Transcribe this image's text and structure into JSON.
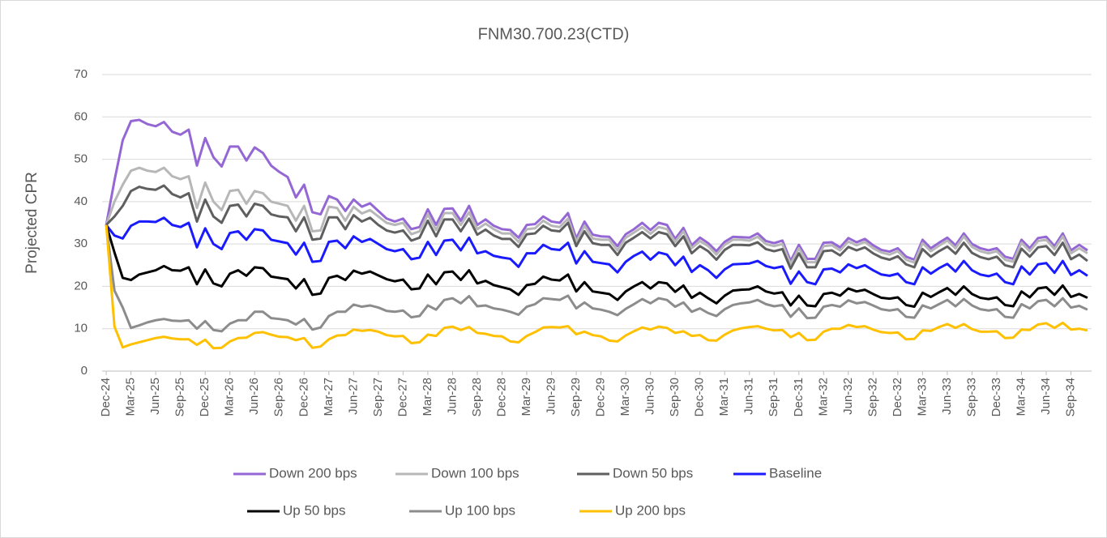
{
  "chart_data": {
    "type": "line",
    "title": "FNM30.700.23(CTD)",
    "y_label": "Projected CPR",
    "categories": [
      "Dec-24",
      null,
      null,
      "Mar-25",
      null,
      null,
      "Jun-25",
      null,
      null,
      "Sep-25",
      null,
      null,
      "Dec-25",
      null,
      null,
      "Mar-26",
      null,
      null,
      "Jun-26",
      null,
      null,
      "Sep-26",
      null,
      null,
      "Dec-26",
      null,
      null,
      "Mar-27",
      null,
      null,
      "Jun-27",
      null,
      null,
      "Sep-27",
      null,
      null,
      "Dec-27",
      null,
      null,
      "Mar-28",
      null,
      null,
      "Jun-28",
      null,
      null,
      "Sep-28",
      null,
      null,
      "Dec-28",
      null,
      null,
      "Mar-29",
      null,
      null,
      "Jun-29",
      null,
      null,
      "Sep-29",
      null,
      null,
      "Dec-29",
      null,
      null,
      "Mar-30",
      null,
      null,
      "Jun-30",
      null,
      null,
      "Sep-30",
      null,
      null,
      "Dec-30",
      null,
      null,
      "Mar-31",
      null,
      null,
      "Jun-31",
      null,
      null,
      "Sep-31",
      null,
      null,
      "Dec-31",
      null,
      null,
      "Mar-32",
      null,
      null,
      "Jun-32",
      null,
      null,
      "Sep-32",
      null,
      null,
      "Dec-32",
      null,
      null,
      "Mar-33",
      null,
      null,
      "Jun-33",
      null,
      null,
      "Sep-33",
      null,
      null,
      "Dec-33",
      null,
      null,
      "Mar-34",
      null,
      null,
      "Jun-34",
      null,
      null,
      "Sep-34",
      null,
      null
    ],
    "ylim": [
      0,
      70
    ],
    "yticks": [
      0,
      10,
      20,
      30,
      40,
      50,
      60,
      70
    ],
    "grid": true,
    "series": [
      {
        "name": "Down 200 bps",
        "color": "#9467d4",
        "values": [
          34.5,
          45,
          54.5,
          59,
          59.3,
          58.3,
          57.8,
          58.8,
          56.5,
          55.8,
          57,
          48.5,
          55,
          50.5,
          48.3,
          53,
          53,
          49.7,
          52.8,
          51.5,
          48.5,
          47,
          45.8,
          41,
          44,
          37.5,
          37,
          41.3,
          40.5,
          37.8,
          40.5,
          38.8,
          39.6,
          37.8,
          36,
          35.3,
          36,
          33.5,
          34,
          38.2,
          34.5,
          38.3,
          38.4,
          35.5,
          39,
          34.5,
          35.8,
          34.3,
          33.5,
          33.3,
          31.5,
          34.5,
          34.7,
          36.5,
          35.3,
          35,
          37.3,
          31.3,
          35.3,
          32.2,
          31.8,
          31.7,
          29.5,
          32.3,
          33.5,
          35,
          33.3,
          35,
          34.5,
          31.2,
          33.8,
          29.7,
          31.5,
          30.2,
          28.3,
          30.5,
          31.7,
          31.6,
          31.5,
          32.5,
          30.7,
          30.2,
          30.8,
          26,
          29.8,
          26.5,
          26.5,
          30.3,
          30.4,
          29.2,
          31.4,
          30.4,
          31.2,
          29.7,
          28.6,
          28.2,
          29,
          27,
          26.3,
          31,
          29,
          30.3,
          31.5,
          29.7,
          32.5,
          30,
          29,
          28.5,
          29,
          27,
          26.5,
          31,
          29,
          31.4,
          31.7,
          29.5,
          32.5,
          28.5,
          29.8,
          28.5
        ]
      },
      {
        "name": "Down 100 bps",
        "color": "#b7b7b7",
        "values": [
          34.5,
          40,
          44,
          47.3,
          48,
          47.3,
          47,
          48,
          46,
          45.3,
          46,
          38.5,
          44.5,
          40,
          38,
          42.5,
          42.8,
          39.5,
          42.5,
          42,
          40,
          39.5,
          39,
          35.5,
          39,
          33,
          33.2,
          38.8,
          38.5,
          35.5,
          38.8,
          37.2,
          38,
          36.5,
          35,
          34.5,
          35,
          32.3,
          33,
          37,
          33.3,
          37.3,
          37.3,
          34.5,
          37.5,
          33.5,
          34.8,
          33.5,
          32.5,
          32.5,
          30.5,
          33.5,
          33.7,
          35.5,
          34.3,
          34,
          36,
          30.5,
          34.3,
          31.3,
          31,
          31,
          28.5,
          31.5,
          32.7,
          34,
          32.4,
          34,
          33.5,
          30.5,
          33,
          29,
          30.7,
          29.5,
          27.5,
          29.8,
          31,
          31,
          30.8,
          31.7,
          30,
          29.5,
          30,
          25.3,
          29,
          25.7,
          25.7,
          29.5,
          29.7,
          28.5,
          30.6,
          29.7,
          30.5,
          29,
          28,
          27.5,
          28.3,
          26.3,
          25.6,
          30.2,
          28.3,
          29.6,
          30.8,
          29,
          31.8,
          29.3,
          28.3,
          27.8,
          28.3,
          26.3,
          25.8,
          30.3,
          28.3,
          30.7,
          31,
          28.8,
          31.8,
          27.8,
          29,
          27.8
        ]
      },
      {
        "name": "Down 50 bps",
        "color": "#5f5f5f",
        "values": [
          34.5,
          36.5,
          39,
          42.5,
          43.5,
          43,
          42.8,
          43.8,
          41.8,
          41,
          42,
          35.3,
          40.5,
          36.5,
          35,
          39,
          39.3,
          36.5,
          39.5,
          39,
          37,
          36.5,
          36.3,
          33,
          36.3,
          31,
          31.3,
          36.3,
          36.3,
          33.5,
          36.8,
          35.3,
          36.2,
          34.5,
          33.2,
          32.7,
          33.2,
          30.8,
          31.5,
          35.5,
          31.8,
          35.8,
          35.8,
          33,
          36,
          32.2,
          33.4,
          32,
          31.2,
          31.2,
          29.3,
          32.3,
          32.5,
          34.3,
          33.2,
          33,
          35,
          29.5,
          33,
          30.2,
          29.8,
          29.8,
          27.4,
          30.3,
          31.5,
          32.8,
          31.3,
          32.8,
          32.3,
          29.5,
          31.8,
          27.8,
          29.5,
          28.3,
          26.3,
          28.6,
          29.8,
          29.8,
          29.7,
          30.4,
          28.8,
          28.3,
          28.8,
          24.2,
          27.8,
          24.5,
          24.5,
          28.3,
          28.5,
          27.3,
          29.3,
          28.5,
          29.2,
          27.8,
          26.8,
          26.3,
          27.1,
          25.2,
          24.5,
          28.8,
          27,
          28.3,
          29.4,
          27.7,
          30.3,
          27.9,
          26.9,
          26.4,
          27,
          25,
          24.5,
          28.9,
          27,
          29.2,
          29.5,
          27.4,
          30.3,
          26.4,
          27.5,
          26
        ]
      },
      {
        "name": "Baseline",
        "color": "#1a1aff",
        "values": [
          34.5,
          32,
          31.3,
          34.3,
          35.3,
          35.3,
          35.2,
          36.2,
          34.5,
          34,
          35,
          29.2,
          33.7,
          30,
          28.8,
          32.6,
          33,
          31,
          33.5,
          33.2,
          31,
          30.6,
          30.2,
          27.5,
          30.3,
          25.8,
          26,
          30.5,
          30.8,
          29,
          31.8,
          30.5,
          31.2,
          30,
          28.8,
          28.3,
          28.8,
          26.4,
          26.8,
          30.5,
          27.4,
          30.8,
          31,
          28.5,
          31.5,
          27.8,
          28.3,
          27.2,
          26.8,
          26.5,
          24.6,
          27.8,
          27.8,
          29.8,
          28.8,
          28.6,
          30.3,
          25.4,
          28.3,
          25.8,
          25.5,
          25.2,
          23.3,
          25.8,
          27.2,
          28.2,
          26.3,
          28,
          27.5,
          25,
          27,
          23.4,
          25,
          23.8,
          22,
          24,
          25.2,
          25.3,
          25.4,
          26,
          24.8,
          24.3,
          24.7,
          20.6,
          23.5,
          21,
          20.5,
          24,
          24.2,
          23.3,
          25.2,
          24.3,
          25,
          23.8,
          22.8,
          22.5,
          23,
          21,
          20.5,
          24.5,
          23,
          24.3,
          25.3,
          23.5,
          26,
          23.8,
          22.8,
          22.4,
          23,
          21,
          20.5,
          24.7,
          22.8,
          25.2,
          25.5,
          23.2,
          26,
          22.7,
          23.8,
          22.5
        ]
      },
      {
        "name": "Up 50 bps",
        "color": "#000000",
        "values": [
          34.5,
          28,
          22,
          21.5,
          22.8,
          23.3,
          23.8,
          24.8,
          23.8,
          23.7,
          24.5,
          20.5,
          24,
          20.7,
          20,
          23,
          23.8,
          22.5,
          24.5,
          24.3,
          22.3,
          22,
          21.7,
          19.5,
          21.7,
          18,
          18.3,
          22,
          22.5,
          21.5,
          23.7,
          23,
          23.5,
          22.6,
          21.7,
          21.2,
          21.6,
          19.3,
          19.5,
          22.8,
          20.5,
          23.3,
          23.5,
          21.5,
          23.8,
          20.7,
          21.3,
          20.3,
          19.8,
          19.3,
          18,
          20.3,
          20.6,
          22.3,
          21.6,
          21.4,
          22.8,
          18.8,
          21,
          18.8,
          18.5,
          18.2,
          16.8,
          18.8,
          20,
          21,
          19.5,
          21,
          20.7,
          18.7,
          20.2,
          17.3,
          18.5,
          17.2,
          16,
          17.8,
          19,
          19.2,
          19.3,
          20,
          18.8,
          18.3,
          18.6,
          15.5,
          17.8,
          15.5,
          15.3,
          18.2,
          18.5,
          17.8,
          19.5,
          18.8,
          19.2,
          18.2,
          17.3,
          17.1,
          17.4,
          15.6,
          15.2,
          18.5,
          17.5,
          18.6,
          19.6,
          18,
          20,
          18.2,
          17.3,
          17,
          17.4,
          15.6,
          15.3,
          18.8,
          17.4,
          19.5,
          19.8,
          18,
          20.2,
          17.5,
          18.2,
          17.3
        ]
      },
      {
        "name": "Up 100 bps",
        "color": "#8c8c8c",
        "values": [
          34.5,
          19,
          15,
          10.2,
          10.8,
          11.5,
          12,
          12.3,
          11.9,
          11.8,
          12,
          10,
          11.8,
          9.7,
          9.4,
          11.2,
          12,
          12,
          14,
          14,
          12.5,
          12.3,
          12,
          11,
          12.3,
          9.8,
          10.3,
          13,
          14,
          14,
          15.7,
          15.2,
          15.5,
          15,
          14.2,
          14,
          14.3,
          12.7,
          13,
          15.5,
          14.5,
          16.8,
          17.2,
          16,
          17.7,
          15.3,
          15.5,
          14.8,
          14.5,
          14,
          13.3,
          15.2,
          15.8,
          17.2,
          17,
          16.8,
          17.8,
          14.8,
          16.2,
          14.8,
          14.5,
          14,
          13.2,
          14.7,
          15.8,
          17,
          16,
          17.2,
          16.8,
          15.2,
          16.2,
          14,
          14.8,
          13.7,
          13,
          14.6,
          15.6,
          16,
          16.2,
          16.8,
          15.8,
          15.3,
          15.6,
          12.8,
          14.8,
          12.5,
          12.6,
          15.2,
          15.6,
          15.2,
          16.7,
          16,
          16.3,
          15.5,
          14.6,
          14.3,
          14.6,
          12.8,
          12.6,
          15.5,
          14.8,
          15.8,
          16.8,
          15.3,
          17,
          15.5,
          14.6,
          14.3,
          14.6,
          12.8,
          12.6,
          15.8,
          14.8,
          16.5,
          16.8,
          15.3,
          17.2,
          15,
          15.4,
          14.5
        ]
      },
      {
        "name": "Up 200 bps",
        "color": "#ffc000",
        "values": [
          34.5,
          10.5,
          5.6,
          6.3,
          6.8,
          7.3,
          7.8,
          8.1,
          7.7,
          7.5,
          7.5,
          6.2,
          7.4,
          5.4,
          5.5,
          7,
          7.8,
          7.9,
          9,
          9.2,
          8.6,
          8.1,
          8,
          7.3,
          7.8,
          5.5,
          5.8,
          7.5,
          8.4,
          8.5,
          9.8,
          9.5,
          9.7,
          9.3,
          8.5,
          8.2,
          8.3,
          6.6,
          6.8,
          8.6,
          8.3,
          10.2,
          10.5,
          9.7,
          10.4,
          9,
          8.8,
          8.3,
          8.2,
          7,
          6.8,
          8.3,
          9.2,
          10.3,
          10.4,
          10.3,
          10.6,
          8.7,
          9.3,
          8.5,
          8.2,
          7.2,
          7,
          8.4,
          9.4,
          10.3,
          9.8,
          10.5,
          10.2,
          9,
          9.4,
          8.3,
          8.5,
          7.3,
          7.2,
          8.6,
          9.6,
          10.1,
          10.4,
          10.6,
          10,
          9.6,
          9.7,
          8,
          9,
          7.3,
          7.4,
          9.3,
          10,
          10,
          10.9,
          10.4,
          10.6,
          9.8,
          9.2,
          9,
          9.1,
          7.5,
          7.6,
          9.6,
          9.5,
          10.4,
          11.1,
          10.2,
          11.1,
          9.9,
          9.3,
          9.3,
          9.4,
          7.8,
          7.9,
          9.8,
          9.7,
          11,
          11.3,
          10.2,
          11.4,
          9.8,
          10,
          9.6
        ]
      }
    ]
  }
}
